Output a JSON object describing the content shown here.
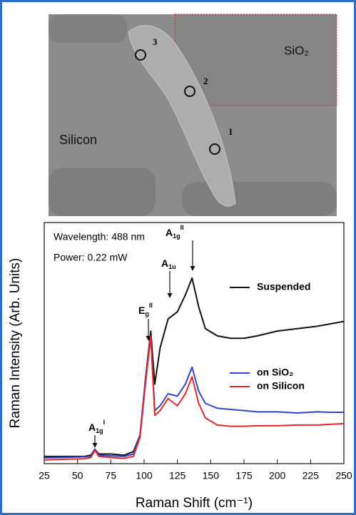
{
  "image_labels": {
    "substrate_top": "SiO₂",
    "substrate_left": "Silicon",
    "spots": [
      "1",
      "2",
      "3"
    ]
  },
  "chart_data": {
    "type": "line",
    "annotations": {
      "wavelength": "Wavelength: 488 nm",
      "power": "Power: 0.22 mW",
      "peaks": [
        {
          "base": "A",
          "sub": "1g",
          "sup": "I"
        },
        {
          "base": "E",
          "sub": "g",
          "sup": "II"
        },
        {
          "base": "A",
          "sub": "1u",
          "sup": ""
        },
        {
          "base": "A",
          "sub": "1g",
          "sup": "II"
        }
      ]
    },
    "x_label": "Raman Shift (cm⁻¹)",
    "y_label": "Raman Intensity (Arb. Units)",
    "x": [
      25,
      40,
      55,
      60,
      63,
      66,
      75,
      85,
      92,
      97,
      101,
      105,
      108,
      112,
      118,
      125,
      131,
      136,
      141,
      146,
      155,
      165,
      175,
      185,
      200,
      215,
      230,
      240,
      250
    ],
    "series": [
      {
        "name": "Suspended",
        "color": "#111111",
        "values": [
          3,
          3,
          3,
          3.5,
          6,
          4,
          4,
          3.5,
          5,
          12,
          35,
          55,
          33,
          48,
          60,
          63,
          70,
          77,
          65,
          56,
          53,
          52,
          52,
          53,
          55,
          56,
          57,
          58,
          59
        ]
      },
      {
        "name": "on SiO₂",
        "color": "#3346c8",
        "values": [
          2.4,
          2.6,
          2.8,
          3,
          6,
          3.5,
          3.2,
          3,
          4,
          12,
          35,
          53,
          22,
          24,
          29,
          28,
          33,
          40,
          30,
          25,
          23,
          22.5,
          22,
          21.5,
          21.5,
          21,
          21.5,
          21.3,
          21.3
        ]
      },
      {
        "name": "on Silicon",
        "color": "#e0282e",
        "values": [
          1.5,
          1.8,
          2,
          2.5,
          5.5,
          3,
          2.5,
          2.2,
          3,
          11,
          33,
          52.7,
          20,
          22,
          27,
          24,
          29,
          36,
          25,
          19,
          16,
          15.5,
          15.5,
          15.7,
          15.7,
          16,
          16,
          16.3,
          16.6
        ]
      }
    ],
    "xlim": [
      25,
      250
    ],
    "xticks": [
      25,
      50,
      75,
      100,
      125,
      150,
      175,
      200,
      225,
      250
    ],
    "ylim": [
      0,
      100
    ]
  }
}
